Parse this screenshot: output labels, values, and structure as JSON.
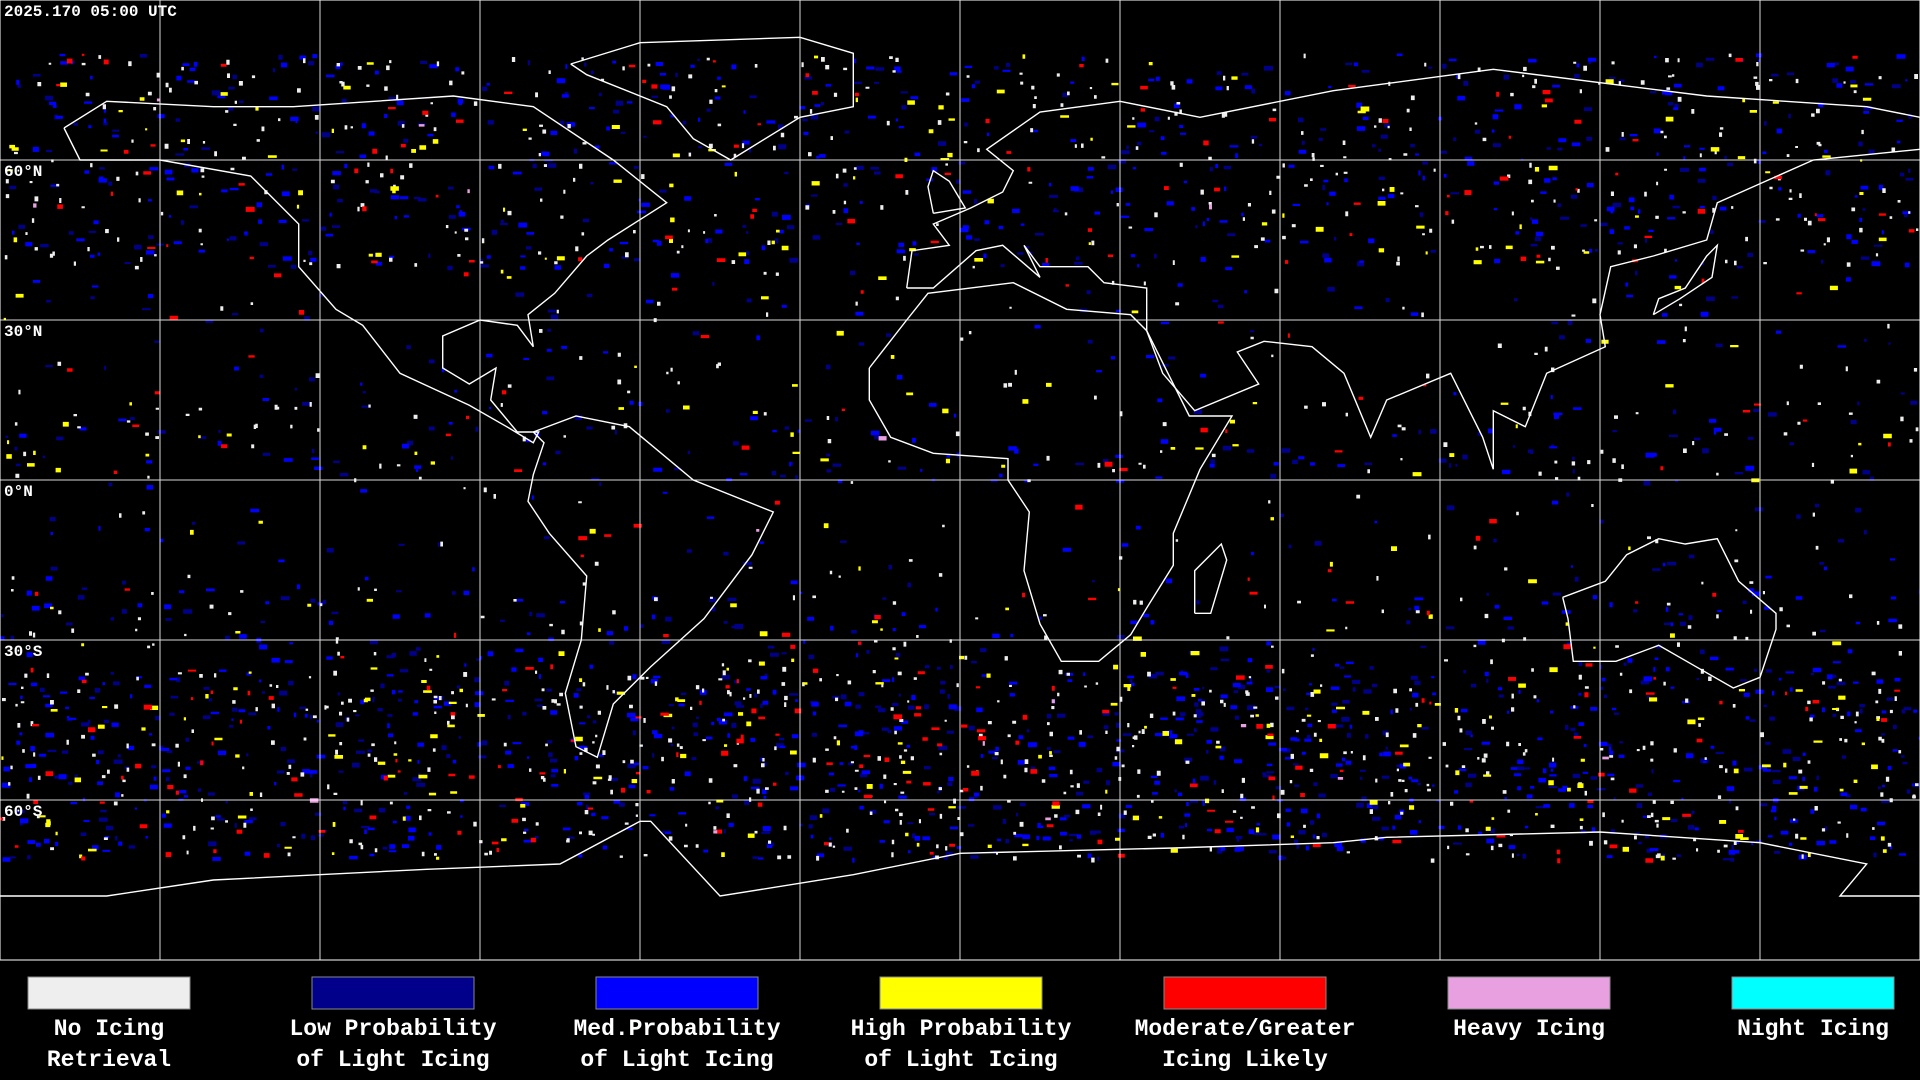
{
  "timestamp": "2025.170 05:00 UTC",
  "lat_labels": [
    "60°N",
    "30°N",
    "0°N",
    "30°S",
    "60°S"
  ],
  "legend": [
    {
      "lines": [
        "No Icing",
        "Retrieval"
      ],
      "color": "#eeeeee"
    },
    {
      "lines": [
        "Low Probability",
        "of Light Icing"
      ],
      "color": "#00008b"
    },
    {
      "lines": [
        "Med.Probability",
        "of Light Icing"
      ],
      "color": "#0000ff"
    },
    {
      "lines": [
        "High Probability",
        "of Light Icing"
      ],
      "color": "#ffff00"
    },
    {
      "lines": [
        "Moderate/Greater",
        "Icing Likely"
      ],
      "color": "#ff0000"
    },
    {
      "lines": [
        "Heavy Icing"
      ],
      "color": "#e8a0e0"
    },
    {
      "lines": [
        "Night Icing"
      ],
      "color": "#00ffff"
    }
  ]
}
